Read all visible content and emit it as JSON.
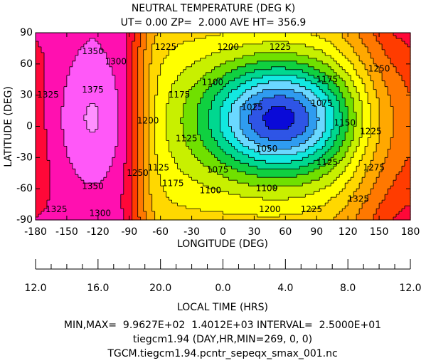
{
  "chart_data": {
    "type": "contour",
    "title": "NEUTRAL TEMPERATURE (DEG K)",
    "subtitle": "UT= 0.00 ZP=  2.000 AVE HT= 356.9",
    "x_label": "LONGITUDE (DEG)",
    "y_label": "LATITUDE (DEG)",
    "xlim": [
      -180,
      180
    ],
    "ylim": [
      -90,
      90
    ],
    "xticks": [
      -180,
      -150,
      -120,
      -90,
      -60,
      -30,
      0,
      30,
      60,
      90,
      120,
      150,
      180
    ],
    "yticks": [
      -90,
      -60,
      -30,
      0,
      30,
      60,
      90
    ],
    "levels": [
      1000,
      1025,
      1050,
      1075,
      1100,
      1125,
      1150,
      1175,
      1200,
      1225,
      1250,
      1275,
      1300,
      1325,
      1350,
      1375,
      1400
    ],
    "colors": [
      "#0a0ad8",
      "#2e55e6",
      "#2f9cf0",
      "#6ad8ff",
      "#12e8e0",
      "#00d890",
      "#10d040",
      "#70e000",
      "#c8f000",
      "#ffff00",
      "#ffd800",
      "#ffa800",
      "#ff7800",
      "#ff3c00",
      "#ff0838",
      "#ff10b0",
      "#ff58f8",
      "#ff90ff"
    ],
    "lt_label": "LOCAL TIME (HRS)",
    "lt_ticks": [
      {
        "value": -180,
        "label": "12.0"
      },
      {
        "value": -120,
        "label": "16.0"
      },
      {
        "value": -60,
        "label": "20.0"
      },
      {
        "value": 0,
        "label": "0.0"
      },
      {
        "value": 60,
        "label": "4.0"
      },
      {
        "value": 120,
        "label": "8.0"
      },
      {
        "value": 180,
        "label": "12.0"
      }
    ],
    "footer": [
      "MIN,MAX=  9.9627E+02  1.4012E+03 INTERVAL=  2.5000E+01",
      "tiegcm1.94 (DAY,HR,MIN=269, 0, 0)",
      "TGCM.tiegcm1.94.pcntr_sepeqx_smax_001.nc"
    ]
  }
}
